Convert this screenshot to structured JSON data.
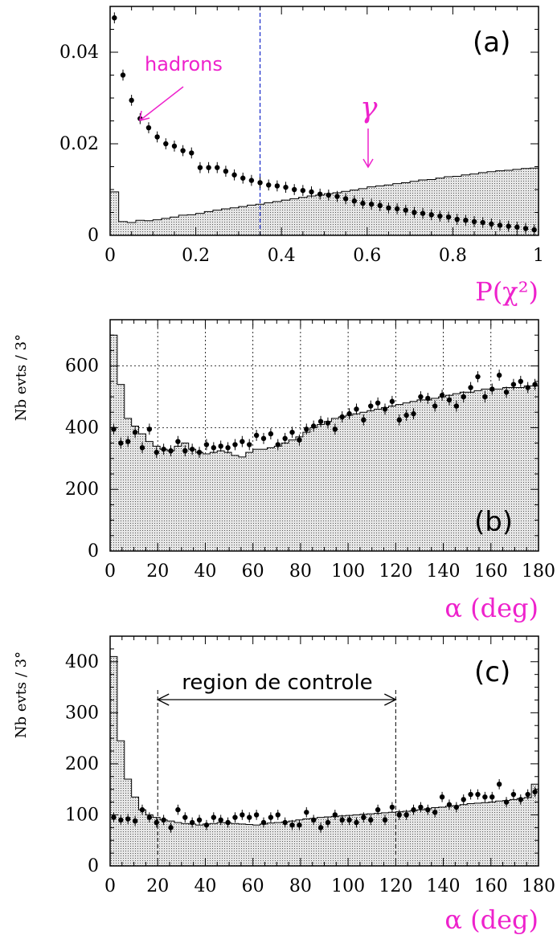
{
  "colors": {
    "annotation": "#ee22cc",
    "cut_line": "#2233cc",
    "hist_fill": "#d8d8d8",
    "points": "#000000"
  },
  "chart_data": [
    {
      "id": "a",
      "type": "line",
      "panel_tag": "(a)",
      "xlabel": "P(χ²)",
      "xlim": [
        0,
        1
      ],
      "ylim": [
        0,
        0.05
      ],
      "xticks": [
        0,
        0.2,
        0.4,
        0.6,
        0.8,
        1
      ],
      "xtick_labels": [
        "0",
        "0.2",
        "0.4",
        "0.6",
        "0.8",
        "1"
      ],
      "yticks": [
        0,
        0.02,
        0.04
      ],
      "ytick_labels": [
        "0",
        "0.02",
        "0.04"
      ],
      "grid": false,
      "cut_line_x": 0.35,
      "annotations": [
        {
          "text": "hadrons",
          "x": 0.15,
          "y": 0.041,
          "arrow_to": [
            0.065,
            0.025
          ]
        },
        {
          "text": "γ",
          "x": 0.6,
          "y": 0.025,
          "arrow_to": [
            0.6,
            0.0145
          ]
        }
      ],
      "histogram": {
        "bin_width": 0.02,
        "values": [
          0.0095,
          0.003,
          0.0028,
          0.0033,
          0.0032,
          0.0034,
          0.0037,
          0.004,
          0.0044,
          0.0045,
          0.0048,
          0.0052,
          0.0055,
          0.0058,
          0.006,
          0.0063,
          0.0066,
          0.0068,
          0.0071,
          0.0074,
          0.0077,
          0.008,
          0.0083,
          0.0086,
          0.0088,
          0.0091,
          0.0093,
          0.0096,
          0.0099,
          0.0102,
          0.0106,
          0.0108,
          0.011,
          0.0113,
          0.0115,
          0.0118,
          0.0121,
          0.0122,
          0.0125,
          0.0128,
          0.0129,
          0.0132,
          0.0134,
          0.0137,
          0.0139,
          0.0141,
          0.0142,
          0.0144,
          0.0146,
          0.0147
        ]
      },
      "points": {
        "x": [
          0.01,
          0.03,
          0.05,
          0.07,
          0.09,
          0.11,
          0.13,
          0.15,
          0.17,
          0.19,
          0.21,
          0.23,
          0.25,
          0.27,
          0.29,
          0.31,
          0.33,
          0.35,
          0.37,
          0.39,
          0.41,
          0.43,
          0.45,
          0.47,
          0.49,
          0.51,
          0.53,
          0.55,
          0.57,
          0.59,
          0.61,
          0.63,
          0.65,
          0.67,
          0.69,
          0.71,
          0.73,
          0.75,
          0.77,
          0.79,
          0.81,
          0.83,
          0.85,
          0.87,
          0.89,
          0.91,
          0.93,
          0.95,
          0.97,
          0.99
        ],
        "y": [
          0.0475,
          0.035,
          0.0295,
          0.0255,
          0.0235,
          0.0215,
          0.02,
          0.0195,
          0.0185,
          0.018,
          0.0148,
          0.0148,
          0.0148,
          0.014,
          0.0132,
          0.0125,
          0.012,
          0.0115,
          0.011,
          0.0108,
          0.0105,
          0.01,
          0.0098,
          0.0095,
          0.009,
          0.0088,
          0.0085,
          0.008,
          0.0075,
          0.007,
          0.0068,
          0.0065,
          0.006,
          0.0058,
          0.0055,
          0.005,
          0.0048,
          0.0045,
          0.0042,
          0.004,
          0.0035,
          0.0033,
          0.003,
          0.0028,
          0.0025,
          0.0022,
          0.002,
          0.0018,
          0.0015,
          0.0012
        ],
        "err": 0.0012
      }
    },
    {
      "id": "b",
      "type": "line",
      "panel_tag": "(b)",
      "ylabel": "Nb evts / 3°",
      "xlabel": "α (deg)",
      "xlim": [
        0,
        180
      ],
      "ylim": [
        0,
        750
      ],
      "xticks": [
        0,
        20,
        40,
        60,
        80,
        100,
        120,
        140,
        160,
        180
      ],
      "xtick_labels": [
        "0",
        "20",
        "40",
        "60",
        "80",
        "100",
        "120",
        "140",
        "160",
        "180"
      ],
      "yticks": [
        0,
        200,
        400,
        600
      ],
      "ytick_labels": [
        "0",
        "200",
        "400",
        "600"
      ],
      "grid": true,
      "histogram": {
        "bin_width": 3,
        "values": [
          700,
          540,
          430,
          405,
          380,
          355,
          340,
          330,
          325,
          340,
          350,
          330,
          320,
          315,
          320,
          325,
          320,
          310,
          305,
          320,
          330,
          330,
          335,
          340,
          350,
          360,
          370,
          385,
          400,
          410,
          420,
          430,
          435,
          440,
          445,
          450,
          455,
          460,
          465,
          470,
          475,
          480,
          485,
          490,
          490,
          495,
          500,
          505,
          510,
          515,
          515,
          520,
          525,
          525,
          525,
          530,
          530,
          530,
          535,
          535
        ]
      },
      "points": {
        "x": [
          1.5,
          4.5,
          7.5,
          10.5,
          13.5,
          16.5,
          19.5,
          22.5,
          25.5,
          28.5,
          31.5,
          34.5,
          37.5,
          40.5,
          43.5,
          46.5,
          49.5,
          52.5,
          55.5,
          58.5,
          61.5,
          64.5,
          67.5,
          70.5,
          73.5,
          76.5,
          79.5,
          82.5,
          85.5,
          88.5,
          91.5,
          94.5,
          97.5,
          100.5,
          103.5,
          106.5,
          109.5,
          112.5,
          115.5,
          118.5,
          121.5,
          124.5,
          127.5,
          130.5,
          133.5,
          136.5,
          139.5,
          142.5,
          145.5,
          148.5,
          151.5,
          154.5,
          157.5,
          160.5,
          163.5,
          166.5,
          169.5,
          172.5,
          175.5,
          178.5
        ],
        "y": [
          395,
          350,
          355,
          385,
          335,
          395,
          320,
          330,
          325,
          355,
          325,
          330,
          320,
          345,
          335,
          340,
          335,
          345,
          355,
          345,
          375,
          365,
          380,
          345,
          365,
          385,
          360,
          395,
          405,
          420,
          415,
          395,
          435,
          445,
          460,
          425,
          470,
          480,
          460,
          485,
          425,
          440,
          445,
          500,
          495,
          470,
          505,
          490,
          470,
          500,
          530,
          565,
          500,
          525,
          570,
          515,
          540,
          550,
          530,
          540
        ],
        "err": 18
      }
    },
    {
      "id": "c",
      "type": "line",
      "panel_tag": "(c)",
      "ylabel": "Nb evts / 3°",
      "xlabel": "α (deg)",
      "xlim": [
        0,
        180
      ],
      "ylim": [
        0,
        450
      ],
      "xticks": [
        0,
        20,
        40,
        60,
        80,
        100,
        120,
        140,
        160,
        180
      ],
      "xtick_labels": [
        "0",
        "20",
        "40",
        "60",
        "80",
        "100",
        "120",
        "140",
        "160",
        "180"
      ],
      "yticks": [
        0,
        100,
        200,
        300,
        400
      ],
      "ytick_labels": [
        "0",
        "100",
        "200",
        "300",
        "400"
      ],
      "grid": false,
      "region": {
        "label": "region de controle",
        "x_range": [
          20,
          120
        ]
      },
      "histogram": {
        "bin_width": 3,
        "values": [
          410,
          245,
          170,
          135,
          110,
          100,
          95,
          90,
          88,
          85,
          83,
          82,
          80,
          82,
          83,
          85,
          84,
          83,
          82,
          81,
          80,
          82,
          84,
          85,
          86,
          88,
          90,
          92,
          93,
          95,
          96,
          97,
          98,
          99,
          100,
          101,
          102,
          103,
          104,
          105,
          106,
          107,
          108,
          110,
          112,
          114,
          115,
          117,
          118,
          120,
          122,
          123,
          124,
          125,
          127,
          128,
          130,
          132,
          134,
          160
        ]
      },
      "points": {
        "x": [
          1.5,
          4.5,
          7.5,
          10.5,
          13.5,
          16.5,
          19.5,
          22.5,
          25.5,
          28.5,
          31.5,
          34.5,
          37.5,
          40.5,
          43.5,
          46.5,
          49.5,
          52.5,
          55.5,
          58.5,
          61.5,
          64.5,
          67.5,
          70.5,
          73.5,
          76.5,
          79.5,
          82.5,
          85.5,
          88.5,
          91.5,
          94.5,
          97.5,
          100.5,
          103.5,
          106.5,
          109.5,
          112.5,
          115.5,
          118.5,
          121.5,
          124.5,
          127.5,
          130.5,
          133.5,
          136.5,
          139.5,
          142.5,
          145.5,
          148.5,
          151.5,
          154.5,
          157.5,
          160.5,
          163.5,
          166.5,
          169.5,
          172.5,
          175.5,
          178.5
        ],
        "y": [
          95,
          90,
          92,
          88,
          110,
          95,
          85,
          90,
          75,
          110,
          95,
          85,
          90,
          80,
          95,
          90,
          85,
          95,
          100,
          95,
          100,
          85,
          95,
          100,
          85,
          80,
          80,
          105,
          90,
          75,
          85,
          100,
          90,
          90,
          85,
          95,
          90,
          110,
          90,
          115,
          100,
          100,
          110,
          115,
          110,
          105,
          135,
          120,
          115,
          130,
          140,
          140,
          135,
          135,
          160,
          125,
          140,
          130,
          140,
          145
        ],
        "err": 10
      }
    }
  ]
}
